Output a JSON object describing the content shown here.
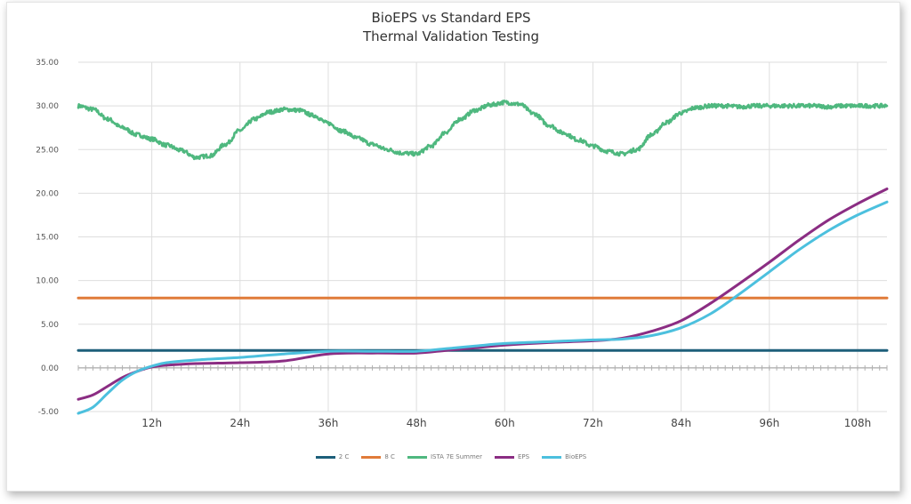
{
  "chart_data": {
    "type": "line",
    "title": "BioEPS vs Standard EPS",
    "subtitle": "Thermal Validation Testing",
    "xlabel": "",
    "ylabel": "",
    "xlim": [
      2,
      112
    ],
    "ylim": [
      -5,
      35
    ],
    "y_ticks": [
      -5,
      0,
      5,
      10,
      15,
      20,
      25,
      30,
      35
    ],
    "y_tick_labels": [
      "-5.00",
      "0.00",
      "5.00",
      "10.00",
      "15.00",
      "20.00",
      "25.00",
      "30.00",
      "35.00"
    ],
    "x_ticks": [
      12,
      24,
      36,
      48,
      60,
      72,
      84,
      96,
      108
    ],
    "x_tick_labels": [
      "12h",
      "24h",
      "36h",
      "48h",
      "60h",
      "72h",
      "84h",
      "96h",
      "108h"
    ],
    "grid": true,
    "legend_position": "bottom",
    "series": [
      {
        "name": "2 C",
        "color": "#1d5f7a",
        "x": [
          2,
          112
        ],
        "y": [
          2,
          2
        ]
      },
      {
        "name": "8 C",
        "color": "#e07b39",
        "x": [
          2,
          112
        ],
        "y": [
          8,
          8
        ]
      },
      {
        "name": "ISTA 7E Summer",
        "color": "#4fb87f",
        "noisy": true,
        "x": [
          2,
          4,
          6,
          8,
          10,
          12,
          14,
          16,
          18,
          20,
          22,
          24,
          26,
          28,
          30,
          32,
          34,
          36,
          38,
          40,
          42,
          44,
          46,
          48,
          50,
          52,
          54,
          56,
          58,
          60,
          62,
          64,
          66,
          68,
          70,
          72,
          74,
          76,
          78,
          80,
          82,
          84,
          86,
          88,
          90,
          92,
          94,
          96,
          98,
          100,
          102,
          104,
          106,
          108,
          110,
          112
        ],
        "y": [
          30.0,
          29.6,
          28.5,
          27.5,
          26.7,
          26.2,
          25.5,
          24.9,
          24.1,
          24.3,
          25.6,
          27.2,
          28.5,
          29.3,
          29.6,
          29.5,
          28.9,
          28.0,
          27.1,
          26.3,
          25.6,
          25.0,
          24.6,
          24.5,
          25.4,
          27.0,
          28.5,
          29.5,
          30.1,
          30.4,
          30.2,
          29.1,
          27.8,
          26.9,
          26.1,
          25.4,
          24.8,
          24.5,
          25.0,
          26.7,
          28.1,
          29.2,
          29.8,
          30.0,
          30.0,
          29.9,
          30.0,
          30.0,
          30.0,
          30.0,
          30.0,
          29.9,
          30.0,
          30.0,
          30.0,
          30.0
        ]
      },
      {
        "name": "EPS",
        "color": "#8b2d83",
        "x": [
          2,
          4,
          6,
          8,
          10,
          12,
          14,
          18,
          24,
          30,
          36,
          42,
          48,
          52,
          56,
          60,
          66,
          72,
          76,
          80,
          84,
          88,
          92,
          96,
          100,
          104,
          108,
          112
        ],
        "y": [
          -3.6,
          -3.1,
          -2.1,
          -1.1,
          -0.4,
          0.1,
          0.3,
          0.5,
          0.6,
          0.8,
          1.6,
          1.7,
          1.7,
          2.0,
          2.3,
          2.6,
          2.9,
          3.1,
          3.4,
          4.2,
          5.4,
          7.4,
          9.7,
          12.1,
          14.6,
          16.9,
          18.8,
          20.5
        ]
      },
      {
        "name": "BioEPS",
        "color": "#4cc0de",
        "x": [
          2,
          4,
          6,
          8,
          10,
          12,
          14,
          18,
          24,
          30,
          36,
          42,
          48,
          52,
          56,
          60,
          66,
          72,
          76,
          80,
          84,
          88,
          92,
          96,
          100,
          104,
          108,
          112
        ],
        "y": [
          -5.2,
          -4.5,
          -2.9,
          -1.4,
          -0.4,
          0.2,
          0.6,
          0.9,
          1.2,
          1.6,
          1.9,
          1.9,
          1.9,
          2.2,
          2.5,
          2.8,
          3.0,
          3.2,
          3.3,
          3.7,
          4.6,
          6.2,
          8.5,
          11.0,
          13.5,
          15.7,
          17.5,
          19.0
        ]
      }
    ]
  }
}
